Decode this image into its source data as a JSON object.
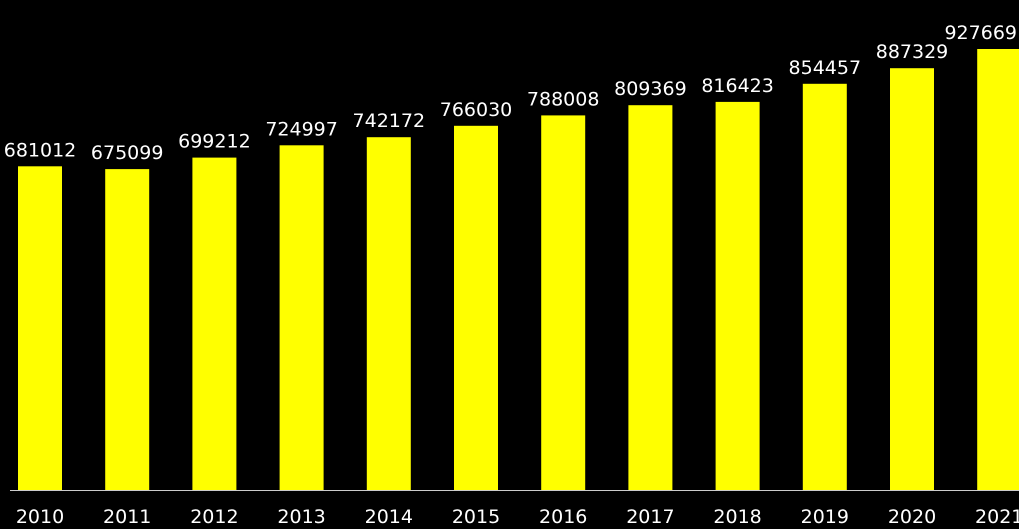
{
  "chart_data": {
    "type": "bar",
    "title": "",
    "xlabel": "",
    "ylabel": "",
    "categories": [
      "2010",
      "2011",
      "2012",
      "2013",
      "2014",
      "2015",
      "2016",
      "2017",
      "2018",
      "2019",
      "2020",
      "2021"
    ],
    "values": [
      681012,
      675099,
      699212,
      724997,
      742172,
      766030,
      788008,
      809369,
      816423,
      854457,
      887329,
      927669
    ],
    "value_labels": [
      "681012",
      "675099",
      "699212",
      "724997",
      "742172",
      "766030",
      "788008",
      "809369",
      "816423",
      "854457",
      "887329",
      "927669"
    ],
    "ylim": [
      0,
      945000
    ],
    "grid": false,
    "legend": "none",
    "colors": {
      "background": "#000000",
      "bar": "#ffff00",
      "text": "#ffffff",
      "axis": "#cccccc"
    }
  }
}
